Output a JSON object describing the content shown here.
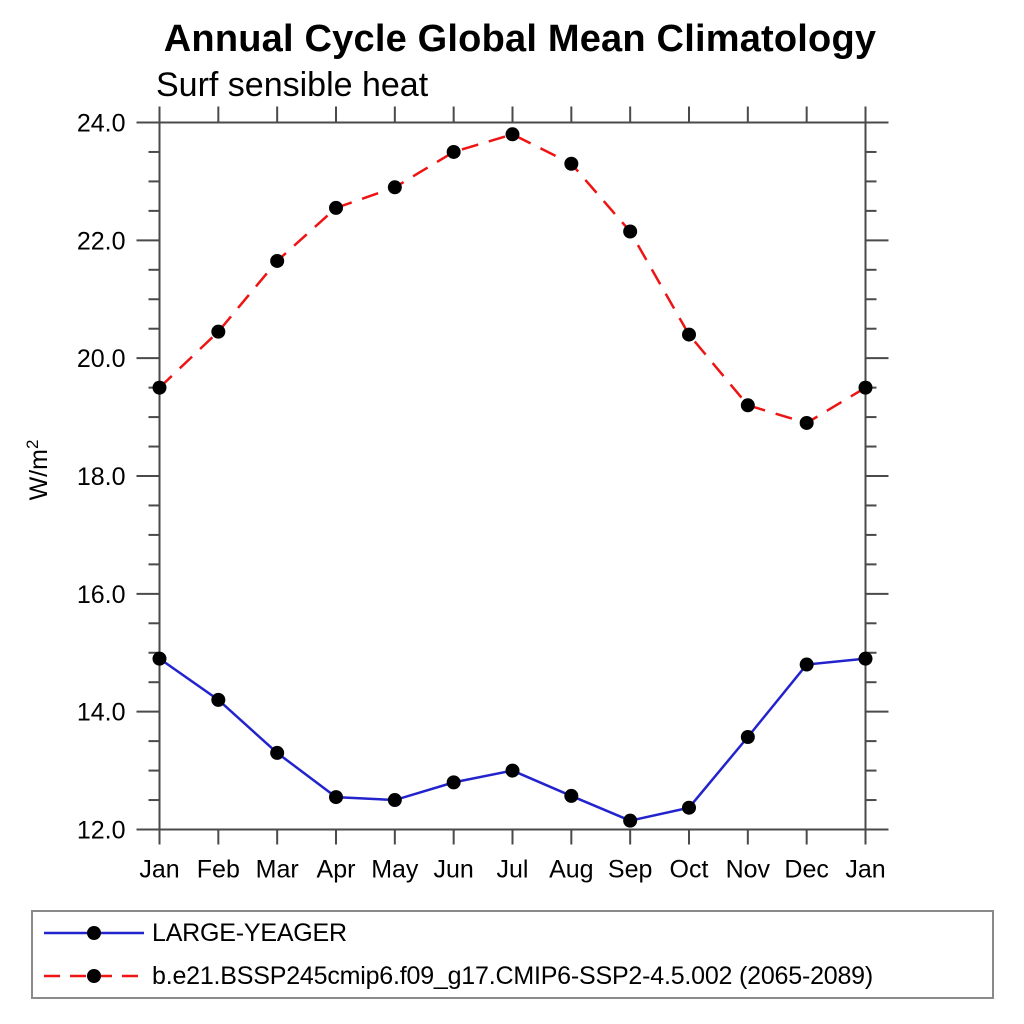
{
  "title": "Annual Cycle Global Mean Climatology",
  "subtitle": "Surf sensible heat",
  "ylabel_base": "W/m",
  "ylabel_exp": "2",
  "colors": {
    "series1_line": "#2323cd",
    "series2_line": "#ee1414",
    "marker": "#000000",
    "axis": "#4a4a4a",
    "legend_border": "#8a8a8a"
  },
  "legend": {
    "items": [
      {
        "label": "LARGE-YEAGER",
        "line_style": "solid",
        "color": "#2323cd"
      },
      {
        "label": "b.e21.BSSP245cmip6.f09_g17.CMIP6-SSP2-4.5.002 (2065-2089)",
        "line_style": "dashed",
        "color": "#ee1414"
      }
    ]
  },
  "chart_data": {
    "type": "line",
    "title": "Annual Cycle Global Mean Climatology",
    "subtitle": "Surf sensible heat",
    "xlabel": "",
    "ylabel": "W/m²",
    "x_tick_labels": [
      "Jan",
      "Feb",
      "Mar",
      "Apr",
      "May",
      "Jun",
      "Jul",
      "Aug",
      "Sep",
      "Oct",
      "Nov",
      "Dec",
      "Jan"
    ],
    "ylim": [
      12.0,
      24.0
    ],
    "y_major_ticks": [
      12.0,
      14.0,
      16.0,
      18.0,
      20.0,
      22.0,
      24.0
    ],
    "y_tick_labels": [
      "12.0",
      "14.0",
      "16.0",
      "18.0",
      "20.0",
      "22.0",
      "24.0"
    ],
    "y_minor_step": 0.5,
    "grid": "off",
    "frame": "box-with-outside-ticks",
    "legend_position": "bottom-left-box",
    "series": [
      {
        "name": "LARGE-YEAGER",
        "color": "#2323cd",
        "line": "solid",
        "marker": "filled-circle",
        "values": [
          14.9,
          14.2,
          13.3,
          12.55,
          12.5,
          12.8,
          13.0,
          12.57,
          12.15,
          12.37,
          13.57,
          14.8,
          14.9
        ]
      },
      {
        "name": "b.e21.BSSP245cmip6.f09_g17.CMIP6-SSP2-4.5.002 (2065-2089)",
        "color": "#ee1414",
        "line": "dashed",
        "marker": "filled-circle",
        "values": [
          19.5,
          20.45,
          21.65,
          22.55,
          22.9,
          23.5,
          23.8,
          23.3,
          22.15,
          20.4,
          19.2,
          18.9,
          19.5
        ]
      }
    ]
  }
}
